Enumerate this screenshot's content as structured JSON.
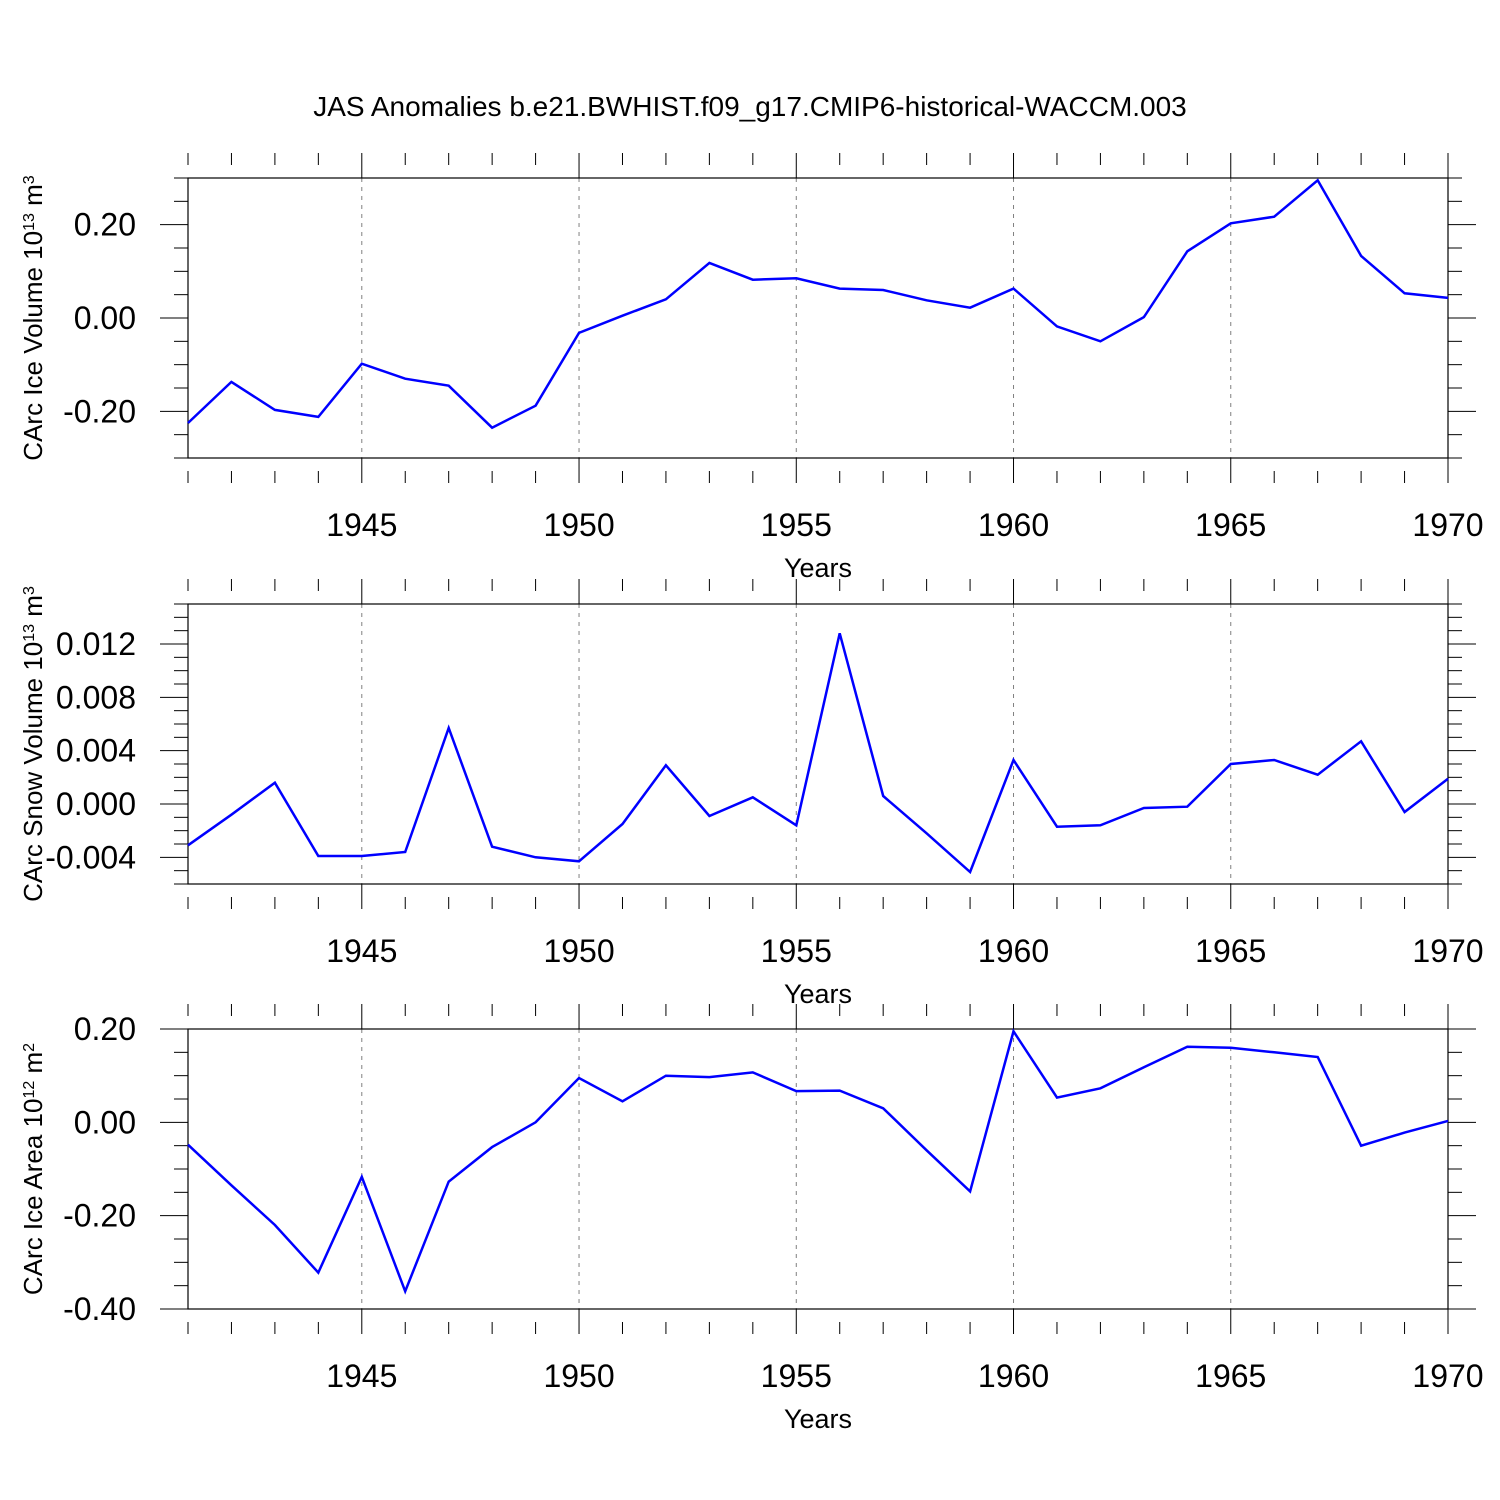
{
  "title": "JAS Anomalies b.e21.BWHIST.f09_g17.CMIP6-historical-WACCM.003",
  "colors": {
    "line": "#0000ff",
    "axis": "#000000",
    "grid": "#808080",
    "background": "#ffffff"
  },
  "chart_data": [
    {
      "type": "line",
      "ylabel": {
        "main": "CArc Ice Volume 10",
        "exp": "13",
        "unit": " m",
        "unit_exp": "3"
      },
      "xlabel": "Years",
      "xlim": [
        1941,
        1970
      ],
      "ylim": [
        -0.3,
        0.3
      ],
      "x_ticks": [
        1945,
        1950,
        1955,
        1960,
        1965,
        1970
      ],
      "x_tick_labels": [
        "1945",
        "1950",
        "1955",
        "1960",
        "1965",
        "1970"
      ],
      "y_ticks": [
        -0.2,
        0.0,
        0.2
      ],
      "y_tick_labels": [
        "-0.20",
        "0.00",
        "0.20"
      ],
      "y_minor_step": 0.05,
      "grid": "dashed vertical at major x ticks",
      "x": [
        1941,
        1942,
        1943,
        1944,
        1945,
        1946,
        1947,
        1948,
        1949,
        1950,
        1951,
        1952,
        1953,
        1954,
        1955,
        1956,
        1957,
        1958,
        1959,
        1960,
        1961,
        1962,
        1963,
        1964,
        1965,
        1966,
        1967,
        1968,
        1969,
        1970
      ],
      "values": [
        -0.225,
        -0.137,
        -0.197,
        -0.212,
        -0.098,
        -0.13,
        -0.145,
        -0.235,
        -0.188,
        -0.032,
        0.005,
        0.04,
        0.118,
        0.082,
        0.085,
        0.063,
        0.06,
        0.038,
        0.022,
        0.063,
        -0.018,
        -0.05,
        0.002,
        0.143,
        0.203,
        0.217,
        0.295,
        0.133,
        0.053,
        0.043
      ]
    },
    {
      "type": "line",
      "ylabel": {
        "main": "CArc Snow Volume 10",
        "exp": "13",
        "unit": " m",
        "unit_exp": "3"
      },
      "xlabel": "Years",
      "xlim": [
        1941,
        1970
      ],
      "ylim": [
        -0.006,
        0.015
      ],
      "x_ticks": [
        1945,
        1950,
        1955,
        1960,
        1965,
        1970
      ],
      "x_tick_labels": [
        "1945",
        "1950",
        "1955",
        "1960",
        "1965",
        "1970"
      ],
      "y_ticks": [
        -0.004,
        0.0,
        0.004,
        0.008,
        0.012
      ],
      "y_tick_labels": [
        "-0.004",
        "0.000",
        "0.004",
        "0.008",
        "0.012"
      ],
      "y_minor_step": 0.001,
      "grid": "dashed vertical at major x ticks",
      "x": [
        1941,
        1942,
        1943,
        1944,
        1945,
        1946,
        1947,
        1948,
        1949,
        1950,
        1951,
        1952,
        1953,
        1954,
        1955,
        1956,
        1957,
        1958,
        1959,
        1960,
        1961,
        1962,
        1963,
        1964,
        1965,
        1966,
        1967,
        1968,
        1969,
        1970
      ],
      "values": [
        -0.0031,
        -0.0008,
        0.0016,
        -0.0039,
        -0.0039,
        -0.0036,
        0.0057,
        -0.0032,
        -0.004,
        -0.0043,
        -0.0015,
        0.0029,
        -0.0009,
        0.0005,
        -0.0016,
        0.0128,
        0.0006,
        -0.0022,
        -0.0051,
        0.0033,
        -0.0017,
        -0.0016,
        -0.0003,
        -0.0002,
        0.003,
        0.0033,
        0.0022,
        0.0047,
        -0.0006,
        0.0019
      ]
    },
    {
      "type": "line",
      "ylabel": {
        "main": "CArc Ice Area 10",
        "exp": "12",
        "unit": " m",
        "unit_exp": "2"
      },
      "xlabel": "Years",
      "xlim": [
        1941,
        1970
      ],
      "ylim": [
        -0.4,
        0.2
      ],
      "x_ticks": [
        1945,
        1950,
        1955,
        1960,
        1965,
        1970
      ],
      "x_tick_labels": [
        "1945",
        "1950",
        "1955",
        "1960",
        "1965",
        "1970"
      ],
      "y_ticks": [
        -0.4,
        -0.2,
        0.0,
        0.2
      ],
      "y_tick_labels": [
        "-0.40",
        "-0.20",
        "0.00",
        "0.20"
      ],
      "y_minor_step": 0.05,
      "grid": "dashed vertical at major x ticks",
      "x": [
        1941,
        1942,
        1943,
        1944,
        1945,
        1946,
        1947,
        1948,
        1949,
        1950,
        1951,
        1952,
        1953,
        1954,
        1955,
        1956,
        1957,
        1958,
        1959,
        1960,
        1961,
        1962,
        1963,
        1964,
        1965,
        1966,
        1967,
        1968,
        1969,
        1970
      ],
      "values": [
        -0.048,
        -0.135,
        -0.22,
        -0.322,
        -0.117,
        -0.362,
        -0.127,
        -0.053,
        0.0,
        0.095,
        0.045,
        0.1,
        0.097,
        0.107,
        0.067,
        0.068,
        0.03,
        -0.06,
        -0.148,
        0.195,
        0.053,
        0.073,
        0.118,
        0.162,
        0.16,
        0.15,
        0.14,
        -0.05,
        -0.022,
        0.003
      ]
    }
  ]
}
